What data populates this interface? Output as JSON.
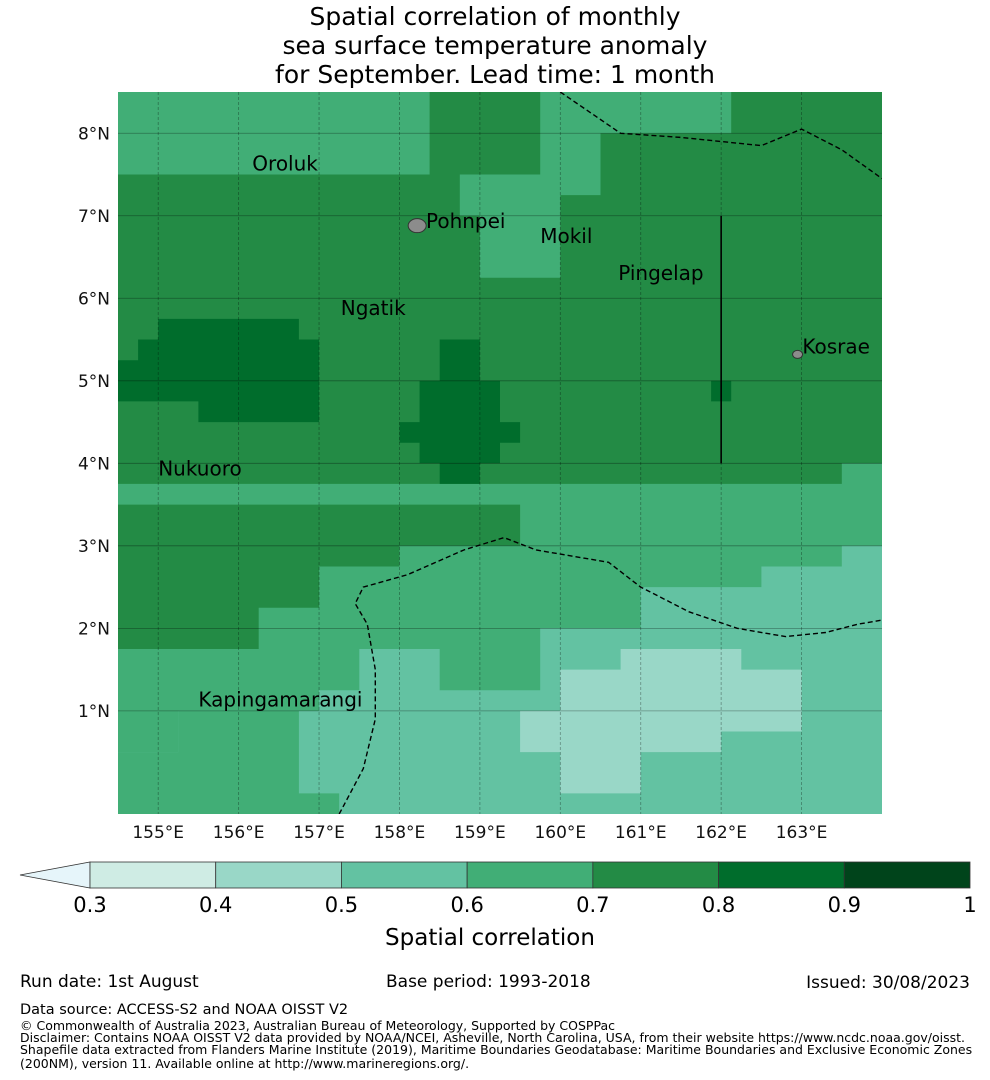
{
  "title_lines": [
    "Spatial correlation of monthly",
    "sea surface temperature anomaly",
    "for September. Lead time: 1 month"
  ],
  "map": {
    "lon_range": [
      154.5,
      164.0
    ],
    "lat_range": [
      -0.25,
      8.5
    ],
    "lon_ticks": [
      {
        "value": 155,
        "label": "155°E"
      },
      {
        "value": 156,
        "label": "156°E"
      },
      {
        "value": 157,
        "label": "157°E"
      },
      {
        "value": 158,
        "label": "158°E"
      },
      {
        "value": 159,
        "label": "159°E"
      },
      {
        "value": 160,
        "label": "160°E"
      },
      {
        "value": 161,
        "label": "161°E"
      },
      {
        "value": 162,
        "label": "162°E"
      },
      {
        "value": 163,
        "label": "163°E"
      }
    ],
    "lat_ticks": [
      {
        "value": 1,
        "label": "1°N"
      },
      {
        "value": 2,
        "label": "2°N"
      },
      {
        "value": 3,
        "label": "3°N"
      },
      {
        "value": 4,
        "label": "4°N"
      },
      {
        "value": 5,
        "label": "5°N"
      },
      {
        "value": 6,
        "label": "6°N"
      },
      {
        "value": 7,
        "label": "7°N"
      },
      {
        "value": 8,
        "label": "8°N"
      }
    ],
    "places": [
      {
        "name": "Oroluk",
        "lon": 156.17,
        "lat": 7.55
      },
      {
        "name": "Pohnpei",
        "lon": 158.33,
        "lat": 6.85
      },
      {
        "name": "Mokil",
        "lon": 159.75,
        "lat": 6.67
      },
      {
        "name": "Pingelap",
        "lon": 160.72,
        "lat": 6.22
      },
      {
        "name": "Ngatik",
        "lon": 157.27,
        "lat": 5.8
      },
      {
        "name": "Kosrae",
        "lon": 163.01,
        "lat": 5.33
      },
      {
        "name": "Nukuoro",
        "lon": 155.0,
        "lat": 3.85
      },
      {
        "name": "Kapingamarangi",
        "lon": 155.5,
        "lat": 1.05
      }
    ],
    "regions": [
      {
        "level": 3,
        "poly": [
          [
            154.5,
            8.5
          ],
          [
            158.375,
            8.5
          ],
          [
            158.375,
            7.5
          ],
          [
            154.5,
            7.5
          ]
        ]
      },
      {
        "level": 3,
        "poly": [
          [
            159.75,
            8.5
          ],
          [
            162.125,
            8.5
          ],
          [
            162.125,
            8.0
          ],
          [
            160.5,
            8.0
          ],
          [
            160.5,
            7.25
          ],
          [
            160.0,
            7.25
          ],
          [
            160.0,
            6.25
          ],
          [
            159.0,
            6.25
          ],
          [
            159.0,
            7.0
          ],
          [
            158.75,
            7.0
          ],
          [
            158.75,
            7.5
          ],
          [
            159.75,
            7.5
          ]
        ]
      },
      {
        "level": 3,
        "poly": [
          [
            154.5,
            3.75
          ],
          [
            163.5,
            3.75
          ],
          [
            163.5,
            4.0
          ],
          [
            164.0,
            4.0
          ],
          [
            164.0,
            -0.25
          ],
          [
            154.5,
            -0.25
          ],
          [
            154.5,
            1.75
          ],
          [
            156.25,
            1.75
          ],
          [
            156.25,
            2.25
          ],
          [
            157.0,
            2.25
          ],
          [
            157.0,
            2.75
          ],
          [
            158.0,
            2.75
          ],
          [
            158.0,
            3.0
          ],
          [
            159.5,
            3.0
          ],
          [
            159.5,
            3.5
          ],
          [
            154.5,
            3.5
          ]
        ]
      },
      {
        "level": 4,
        "poly": [
          [
            157.5,
            1.75
          ],
          [
            158.5,
            1.75
          ],
          [
            158.5,
            1.25
          ],
          [
            159.75,
            1.25
          ],
          [
            159.75,
            2.0
          ],
          [
            161.0,
            2.0
          ],
          [
            161.0,
            2.5
          ],
          [
            162.5,
            2.5
          ],
          [
            162.5,
            2.75
          ],
          [
            163.5,
            2.75
          ],
          [
            163.5,
            3.0
          ],
          [
            164.0,
            3.0
          ],
          [
            164.0,
            -0.25
          ],
          [
            154.5,
            -0.25
          ],
          [
            154.5,
            0.5
          ],
          [
            155.25,
            0.5
          ],
          [
            155.25,
            1.0
          ],
          [
            157.0,
            1.0
          ],
          [
            157.0,
            1.25
          ],
          [
            157.5,
            1.25
          ]
        ]
      },
      {
        "level": 5,
        "poly": [
          [
            160.0,
            1.5
          ],
          [
            160.75,
            1.5
          ],
          [
            160.75,
            1.75
          ],
          [
            162.25,
            1.75
          ],
          [
            162.25,
            1.5
          ],
          [
            163.0,
            1.5
          ],
          [
            163.0,
            0.75
          ],
          [
            162.0,
            0.75
          ],
          [
            162.0,
            0.5
          ],
          [
            161.0,
            0.5
          ],
          [
            161.0,
            0.0
          ],
          [
            160.0,
            0.0
          ],
          [
            160.0,
            0.5
          ],
          [
            159.5,
            0.5
          ],
          [
            159.5,
            1.0
          ],
          [
            160.0,
            1.0
          ]
        ]
      },
      {
        "level": 3,
        "poly": [
          [
            154.5,
            -0.25
          ],
          [
            154.5,
            0.5
          ],
          [
            155.25,
            0.5
          ],
          [
            155.25,
            1.0
          ],
          [
            156.75,
            1.0
          ],
          [
            156.75,
            0.0
          ],
          [
            157.25,
            0.0
          ],
          [
            157.25,
            -0.25
          ]
        ]
      },
      {
        "level": 1,
        "poly": [
          [
            154.5,
            5.25
          ],
          [
            154.75,
            5.25
          ],
          [
            154.75,
            5.5
          ],
          [
            155.0,
            5.5
          ],
          [
            155.0,
            5.75
          ],
          [
            156.75,
            5.75
          ],
          [
            156.75,
            5.5
          ],
          [
            157.0,
            5.5
          ],
          [
            157.0,
            4.5
          ],
          [
            155.5,
            4.5
          ],
          [
            155.5,
            4.75
          ],
          [
            154.5,
            4.75
          ]
        ]
      },
      {
        "level": 1,
        "poly": [
          [
            158.5,
            5.5
          ],
          [
            159.0,
            5.5
          ],
          [
            159.0,
            5.0
          ],
          [
            159.25,
            5.0
          ],
          [
            159.25,
            4.5
          ],
          [
            159.5,
            4.5
          ],
          [
            159.5,
            4.25
          ],
          [
            159.25,
            4.25
          ],
          [
            159.25,
            4.0
          ],
          [
            159.0,
            4.0
          ],
          [
            159.0,
            3.75
          ],
          [
            158.5,
            3.75
          ],
          [
            158.5,
            4.0
          ],
          [
            158.25,
            4.0
          ],
          [
            158.25,
            4.25
          ],
          [
            158.0,
            4.25
          ],
          [
            158.0,
            4.5
          ],
          [
            158.25,
            4.5
          ],
          [
            158.25,
            5.0
          ],
          [
            158.5,
            5.0
          ]
        ]
      },
      {
        "level": 1,
        "poly": [
          [
            161.875,
            5.0
          ],
          [
            162.125,
            5.0
          ],
          [
            162.125,
            4.75
          ],
          [
            161.875,
            4.75
          ]
        ]
      }
    ],
    "boundaries": [
      [
        [
          160.0,
          8.5
        ],
        [
          160.75,
          8.0
        ],
        [
          161.5,
          7.95
        ],
        [
          162.5,
          7.85
        ],
        [
          163.0,
          8.05
        ],
        [
          163.5,
          7.8
        ],
        [
          164.0,
          7.45
        ]
      ],
      [
        [
          157.25,
          -0.25
        ],
        [
          157.55,
          0.3
        ],
        [
          157.7,
          0.9
        ],
        [
          157.7,
          1.5
        ],
        [
          157.6,
          2.05
        ],
        [
          157.45,
          2.3
        ],
        [
          157.55,
          2.5
        ],
        [
          158.1,
          2.65
        ],
        [
          158.8,
          2.95
        ],
        [
          159.3,
          3.1
        ],
        [
          159.7,
          2.95
        ],
        [
          160.3,
          2.85
        ],
        [
          160.6,
          2.8
        ],
        [
          161.0,
          2.5
        ],
        [
          161.6,
          2.2
        ],
        [
          162.2,
          2.0
        ],
        [
          162.8,
          1.9
        ],
        [
          163.3,
          1.95
        ],
        [
          163.7,
          2.05
        ],
        [
          164.0,
          2.1
        ]
      ]
    ],
    "vertical_line": {
      "lon": 162.0,
      "lat_from": 4.0,
      "lat_to": 7.0
    },
    "islands": [
      {
        "lon": 158.22,
        "lat": 6.88,
        "rx": 9,
        "ry": 7
      },
      {
        "lon": 162.95,
        "lat": 5.32,
        "rx": 5,
        "ry": 4
      }
    ]
  },
  "colorbar": {
    "ticks": [
      "0.3",
      "0.4",
      "0.5",
      "0.6",
      "0.7",
      "0.8",
      "0.9",
      "1"
    ],
    "colors": [
      "#cfece4",
      "#99d7c7",
      "#63c2a2",
      "#41ae76",
      "#238b45",
      "#006d2c",
      "#00441b"
    ],
    "extend_color": "#e6f5fa",
    "label": "Spatial correlation"
  },
  "levels": [
    "#cfece4",
    "#006d2c",
    "#238b45",
    "#41ae76",
    "#63c2a2",
    "#99d7c7"
  ],
  "footer": {
    "run_date": "Run date: 1st August",
    "base_period": "Base period: 1993-2018",
    "issued": "Issued: 30/08/2023",
    "data_source": "Data source: ACCESS-S2 and NOAA OISST V2",
    "copyright": "© Commonwealth of Australia 2023, Australian Bureau of Meteorology, Supported by COSPPac",
    "disclaimer_lines": [
      "Disclaimer: Contains NOAA OISST V2 data provided by NOAA/NCEI, Asheville, North Carolina, USA, from their website https://www.ncdc.noaa.gov/oisst.",
      "Shapefile data extracted from Flanders Marine Institute (2019), Maritime Boundaries Geodatabase: Maritime Boundaries and Exclusive Economic Zones",
      "(200NM), version 11. Available online at http://www.marineregions.org/."
    ]
  }
}
